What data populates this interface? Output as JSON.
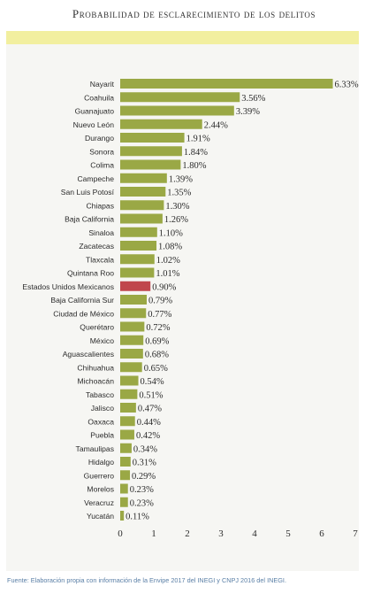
{
  "title": "Probabilidad de esclarecimiento de los delitos",
  "source": "Fuente: Elaboración propia con información de la Envipe 2017 del INEGI y CNPJ 2016 del INEGI.",
  "colors": {
    "bar": "#9aa845",
    "highlight": "#c0464c",
    "panel": "#f6f6f3",
    "band": "#f2ef9f"
  },
  "chart_data": {
    "type": "bar",
    "orientation": "horizontal",
    "title": "Probabilidad de esclarecimiento de los delitos",
    "xlim": [
      0,
      7
    ],
    "xticks": [
      "0",
      "1",
      "2",
      "3",
      "4",
      "5",
      "6",
      "7"
    ],
    "highlight_category": "Estados Unidos Mexicanos",
    "categories": [
      "Nayarit",
      "Coahuila",
      "Guanajuato",
      "Nuevo León",
      "Durango",
      "Sonora",
      "Colima",
      "Campeche",
      "San Luis Potosí",
      "Chiapas",
      "Baja California",
      "Sinaloa",
      "Zacatecas",
      "Tlaxcala",
      "Quintana Roo",
      "Estados Unidos Mexicanos",
      "Baja California Sur",
      "Ciudad de México",
      "Querétaro",
      "México",
      "Aguascalientes",
      "Chihuahua",
      "Michoacán",
      "Tabasco",
      "Jalisco",
      "Oaxaca",
      "Puebla",
      "Tamaulipas",
      "Hidalgo",
      "Guerrero",
      "Morelos",
      "Veracruz",
      "Yucatán"
    ],
    "values": [
      6.33,
      3.56,
      3.39,
      2.44,
      1.91,
      1.84,
      1.8,
      1.39,
      1.35,
      1.3,
      1.26,
      1.1,
      1.08,
      1.02,
      1.01,
      0.9,
      0.79,
      0.77,
      0.72,
      0.69,
      0.68,
      0.65,
      0.54,
      0.51,
      0.47,
      0.44,
      0.42,
      0.34,
      0.31,
      0.29,
      0.23,
      0.23,
      0.11
    ],
    "value_labels": [
      "6.33%",
      "3.56%",
      "3.39%",
      "2.44%",
      "1.91%",
      "1.84%",
      "1.80%",
      "1.39%",
      "1.35%",
      "1.30%",
      "1.26%",
      "1.10%",
      "1.08%",
      "1.02%",
      "1.01%",
      "0.90%",
      "0.79%",
      "0.77%",
      "0.72%",
      "0.69%",
      "0.68%",
      "0.65%",
      "0.54%",
      "0.51%",
      "0.47%",
      "0.44%",
      "0.42%",
      "0.34%",
      "0.31%",
      "0.29%",
      "0.23%",
      "0.23%",
      "0.11%"
    ]
  }
}
